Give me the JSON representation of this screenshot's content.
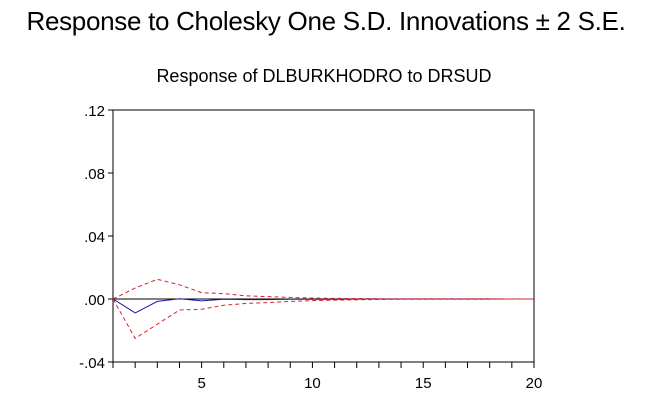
{
  "header": {
    "title": "Response to Cholesky One S.D. Innovations ± 2 S.E."
  },
  "chart_data": {
    "type": "line",
    "title": "Response of DLBURKHODRO to DRSUD",
    "xlabel": "",
    "ylabel": "",
    "xlim": [
      1,
      20
    ],
    "ylim": [
      -0.04,
      0.12
    ],
    "x_ticks": [
      5,
      10,
      15,
      20
    ],
    "x_tick_labels": [
      "5",
      "10",
      "15",
      "20"
    ],
    "y_ticks": [
      -0.04,
      0.0,
      0.04,
      0.08,
      0.12
    ],
    "y_tick_labels": [
      "-.04",
      ".00",
      ".04",
      ".08",
      ".12"
    ],
    "grid": false,
    "zero_line": true,
    "x": [
      1,
      2,
      3,
      4,
      5,
      6,
      7,
      8,
      9,
      10,
      11,
      12,
      13,
      14,
      15,
      16,
      17,
      18,
      19,
      20
    ],
    "series": [
      {
        "color": "#1a1aa6",
        "style": "solid",
        "values": [
          0.0,
          -0.0088,
          -0.0015,
          0.0002,
          -0.0012,
          -0.0002,
          -0.0004,
          -0.0004,
          -0.0002,
          -0.0001,
          -0.0001,
          0.0,
          0.0,
          0.0,
          0.0,
          0.0,
          0.0,
          0.0,
          0.0,
          0.0
        ]
      },
      {
        "color": "#dd2222",
        "style": "dashed",
        "values": [
          0.0,
          0.007,
          0.0125,
          0.009,
          0.004,
          0.0035,
          0.002,
          0.0015,
          0.001,
          0.0006,
          0.0004,
          0.0003,
          0.0002,
          0.0002,
          0.0001,
          0.0001,
          0.0001,
          0.0001,
          0.0,
          0.0
        ]
      },
      {
        "color": "#dd2222",
        "style": "dashed",
        "values": [
          0.0,
          -0.025,
          -0.016,
          -0.007,
          -0.0065,
          -0.004,
          -0.0028,
          -0.0023,
          -0.0015,
          -0.001,
          -0.0007,
          -0.0005,
          -0.0003,
          -0.0002,
          -0.0002,
          -0.0001,
          -0.0001,
          -0.0001,
          0.0,
          0.0
        ]
      }
    ]
  }
}
